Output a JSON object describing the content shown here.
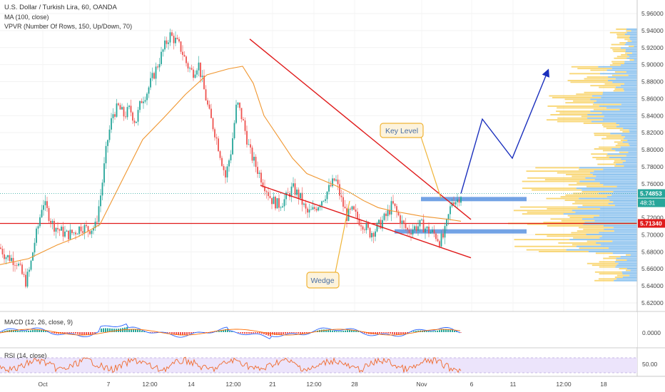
{
  "header": {
    "symbol_line": "U.S. Dollar / Turkish Lira, 60, OANDA",
    "ma_label": "MA (100, close)",
    "vpvr_label": "VPVR (Number Of Rows, 150, Up/Down, 70)"
  },
  "price_axis": {
    "labels": [
      "5.96000",
      "5.94000",
      "5.92000",
      "5.90000",
      "5.88000",
      "5.86000",
      "5.84000",
      "5.82000",
      "5.80000",
      "5.78000",
      "5.76000",
      "5.74000",
      "5.72000",
      "5.70000",
      "5.68000",
      "5.66000",
      "5.64000",
      "5.62000"
    ],
    "current_price": "5.74853",
    "countdown": "48:31",
    "level_price": "5.71340"
  },
  "time_axis": {
    "labels": [
      "Oct",
      "7",
      "12:00",
      "14",
      "12:00",
      "21",
      "12:00",
      "28",
      "Nov",
      "6",
      "11",
      "12:00",
      "18"
    ]
  },
  "macd": {
    "label": "MACD (12, 26, close, 9)",
    "axis_label": "0.0000"
  },
  "rsi": {
    "label": "RSI (14, close)",
    "axis_label": "50.00"
  },
  "annotations": {
    "key_level": "Key Level",
    "wedge": "Wedge"
  },
  "colors": {
    "bull": "#26a69a",
    "bear": "#ef5350",
    "ma": "#f0962f",
    "wedge_line": "#e01b1b",
    "level_line": "#e01b1b",
    "zone": "#5b93e0",
    "projection": "#1a2fbd",
    "callout_border": "#f0b437",
    "callout_bg": "#fdf3dc",
    "vp_yellow": "#f7c948",
    "vp_blue": "#64aee8"
  },
  "chart_data": [
    {
      "type": "candlestick",
      "title": "U.S. Dollar / Turkish Lira, 60, OANDA",
      "ylim": [
        5.61,
        5.97
      ],
      "overlays": [
        "MA (100, close)",
        "VPVR (Number Of Rows, 150, Up/Down, 70)"
      ],
      "close_path": [
        [
          0,
          5.685
        ],
        [
          8,
          5.675
        ],
        [
          16,
          5.672
        ],
        [
          24,
          5.668
        ],
        [
          30,
          5.655
        ],
        [
          36,
          5.645
        ],
        [
          42,
          5.66
        ],
        [
          48,
          5.69
        ],
        [
          54,
          5.712
        ],
        [
          60,
          5.74
        ],
        [
          66,
          5.728
        ],
        [
          74,
          5.712
        ],
        [
          84,
          5.705
        ],
        [
          94,
          5.7
        ],
        [
          104,
          5.703
        ],
        [
          114,
          5.71
        ],
        [
          124,
          5.706
        ],
        [
          134,
          5.71
        ],
        [
          142,
          5.752
        ],
        [
          150,
          5.808
        ],
        [
          158,
          5.842
        ],
        [
          166,
          5.85
        ],
        [
          174,
          5.84
        ],
        [
          182,
          5.848
        ],
        [
          190,
          5.832
        ],
        [
          198,
          5.858
        ],
        [
          206,
          5.868
        ],
        [
          214,
          5.885
        ],
        [
          222,
          5.902
        ],
        [
          230,
          5.92
        ],
        [
          238,
          5.935
        ],
        [
          246,
          5.928
        ],
        [
          254,
          5.918
        ],
        [
          262,
          5.9
        ],
        [
          270,
          5.89
        ],
        [
          278,
          5.902
        ],
        [
          286,
          5.87
        ],
        [
          294,
          5.84
        ],
        [
          302,
          5.818
        ],
        [
          310,
          5.79
        ],
        [
          316,
          5.768
        ],
        [
          324,
          5.8
        ],
        [
          332,
          5.856
        ],
        [
          340,
          5.835
        ],
        [
          350,
          5.798
        ],
        [
          360,
          5.778
        ],
        [
          370,
          5.76
        ],
        [
          380,
          5.742
        ],
        [
          390,
          5.735
        ],
        [
          400,
          5.742
        ],
        [
          410,
          5.755
        ],
        [
          420,
          5.745
        ],
        [
          430,
          5.725
        ],
        [
          438,
          5.728
        ],
        [
          446,
          5.736
        ],
        [
          454,
          5.745
        ],
        [
          462,
          5.755
        ],
        [
          470,
          5.766
        ],
        [
          478,
          5.742
        ],
        [
          486,
          5.722
        ],
        [
          494,
          5.728
        ],
        [
          502,
          5.718
        ],
        [
          510,
          5.712
        ],
        [
          518,
          5.702
        ],
        [
          526,
          5.706
        ],
        [
          534,
          5.714
        ],
        [
          542,
          5.723
        ],
        [
          550,
          5.736
        ],
        [
          556,
          5.726
        ],
        [
          564,
          5.713
        ],
        [
          572,
          5.704
        ],
        [
          580,
          5.708
        ],
        [
          590,
          5.712
        ],
        [
          600,
          5.705
        ],
        [
          610,
          5.7
        ],
        [
          616,
          5.693
        ],
        [
          622,
          5.698
        ],
        [
          628,
          5.72
        ],
        [
          634,
          5.742
        ],
        [
          640,
          5.74
        ],
        [
          646,
          5.748
        ]
      ],
      "ma_100_path": [
        [
          0,
          5.665
        ],
        [
          40,
          5.672
        ],
        [
          80,
          5.688
        ],
        [
          110,
          5.698
        ],
        [
          140,
          5.712
        ],
        [
          170,
          5.762
        ],
        [
          200,
          5.812
        ],
        [
          230,
          5.838
        ],
        [
          260,
          5.865
        ],
        [
          290,
          5.888
        ],
        [
          320,
          5.895
        ],
        [
          340,
          5.898
        ],
        [
          355,
          5.878
        ],
        [
          370,
          5.84
        ],
        [
          390,
          5.815
        ],
        [
          410,
          5.79
        ],
        [
          430,
          5.772
        ],
        [
          450,
          5.765
        ],
        [
          470,
          5.758
        ],
        [
          490,
          5.75
        ],
        [
          510,
          5.74
        ],
        [
          530,
          5.732
        ],
        [
          550,
          5.728
        ],
        [
          570,
          5.725
        ],
        [
          590,
          5.722
        ],
        [
          610,
          5.72
        ],
        [
          630,
          5.718
        ],
        [
          646,
          5.716
        ]
      ],
      "wedge_upper": [
        [
          5.93,
          350
        ],
        [
          5.718,
          660
        ]
      ],
      "wedge_lower": [
        [
          5.758,
          365
        ],
        [
          5.673,
          660
        ]
      ],
      "horizontal_level": 5.7134,
      "key_level_zones": [
        [
          5.7395,
          5.7445
        ],
        [
          5.7015,
          5.7065
        ]
      ],
      "projection_path": [
        [
          5.7485,
          646
        ],
        [
          5.836,
          676
        ],
        [
          5.79,
          718
        ],
        [
          5.893,
          768
        ]
      ]
    },
    {
      "type": "line",
      "title": "MACD (12, 26, close, 9)",
      "ylabel": "0.0000",
      "series": [
        "MACD",
        "Signal",
        "Histogram"
      ]
    },
    {
      "type": "line",
      "title": "RSI (14, close)",
      "ylabel": "50.00",
      "bands": [
        30,
        70
      ]
    }
  ]
}
